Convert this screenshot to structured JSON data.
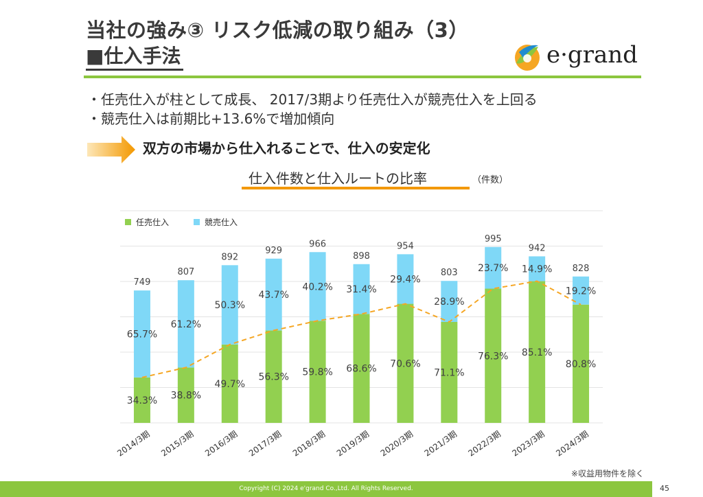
{
  "header": {
    "title": "当社の強み③ リスク低減の取り組み（3）",
    "subtitle": "■仕入手法",
    "logo_text": "e·grand"
  },
  "bullets": [
    "・任売仕入が柱として成長、 2017/3期より任売仕入が競売仕入を上回る",
    "・競売仕入は前期比+13.6%で増加傾向"
  ],
  "callout": "双方の市場から仕入れることで、仕入の安定化",
  "chart_heading": {
    "title": "仕入件数と仕入ルートの比率",
    "unit": "（件数）"
  },
  "note": "※収益用物件を除く",
  "footer": {
    "copyright": "Copyright (C) 2024 e'grand Co.,Ltd. All Rights Reserved.",
    "page": "45"
  },
  "colors": {
    "green": "#92d050",
    "blue": "#7fd8f7",
    "line": "#f5a623",
    "accent": "#8cc63f",
    "orange": "#f39800"
  },
  "chart_data": {
    "type": "bar",
    "stacked": true,
    "categories": [
      "2014/3期",
      "2015/3期",
      "2016/3期",
      "2017/3期",
      "2018/3期",
      "2019/3期",
      "2020/3期",
      "2021/3期",
      "2022/3期",
      "2023/3期",
      "2024/3期"
    ],
    "totals": [
      749,
      807,
      892,
      929,
      966,
      898,
      954,
      803,
      995,
      942,
      828
    ],
    "series": [
      {
        "name": "任売仕入",
        "percent": [
          34.3,
          38.8,
          49.7,
          56.3,
          59.8,
          68.6,
          70.6,
          71.1,
          76.3,
          85.1,
          80.8
        ]
      },
      {
        "name": "競売仕入",
        "percent": [
          65.7,
          61.2,
          50.3,
          43.7,
          40.2,
          31.4,
          29.4,
          28.9,
          23.7,
          14.9,
          19.2
        ]
      }
    ],
    "percent_labels_shown": {
      "任売仕入": [
        "34.3%",
        "38.8%",
        "49.7%",
        "56.3%",
        "59.8%",
        "68.6%",
        "70.6%",
        "71.1%",
        "76.3%",
        "85.1%",
        "80.8%"
      ],
      "競売仕入": [
        "65.7%",
        "61.2%",
        "50.3%",
        "43.7%",
        "40.2%",
        "31.4%",
        "29.4%",
        "28.9%",
        "23.7%",
        "14.9%",
        "19.2%"
      ]
    },
    "ylim": [
      0,
      1200
    ],
    "grid": true,
    "legend_position": "top-left",
    "trend_line": "dashed line through top of 任売仕入 segments"
  }
}
